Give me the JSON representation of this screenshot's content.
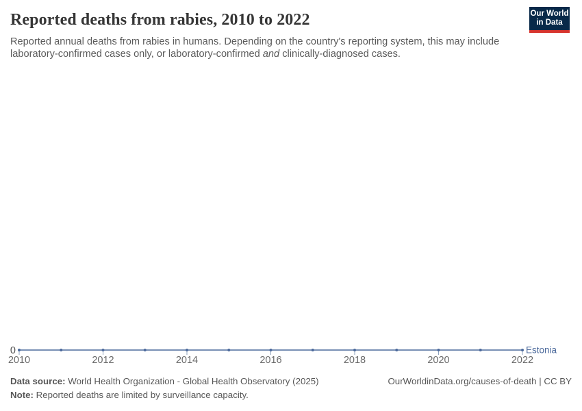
{
  "header": {
    "title": "Reported deaths from rabies, 2010 to 2022",
    "subtitle_part1": "Reported annual deaths from rabies in humans. Depending on the country's reporting system, this may include laboratory-confirmed cases only, or laboratory-confirmed ",
    "subtitle_italic": "and",
    "subtitle_part2": " clinically-diagnosed cases."
  },
  "logo": {
    "line1": "Our World",
    "line2": "in Data",
    "bg_color": "#082949",
    "accent_color": "#d7352e"
  },
  "chart_data": {
    "type": "line",
    "title": "Reported deaths from rabies, 2010 to 2022",
    "x": [
      2010,
      2011,
      2012,
      2013,
      2014,
      2015,
      2016,
      2017,
      2018,
      2019,
      2020,
      2021,
      2022
    ],
    "series": [
      {
        "name": "Estonia",
        "color": "#4C6A9C",
        "values": [
          0,
          0,
          0,
          0,
          0,
          0,
          0,
          0,
          0,
          0,
          0,
          0,
          0
        ]
      }
    ],
    "x_ticks": [
      2010,
      2012,
      2014,
      2016,
      2018,
      2020,
      2022
    ],
    "x_tick_labels": [
      "2010",
      "2012",
      "2014",
      "2016",
      "2018",
      "2020",
      "2022"
    ],
    "y_tick_labels": [
      "0"
    ],
    "xlim": [
      2010,
      2022
    ],
    "ylim": [
      0,
      0
    ],
    "grid": "off",
    "legend_position": "end-of-line-label",
    "colors": {
      "tick_label": "#696969",
      "y_label": "#4f4f4f",
      "axis_tick": "#8fa3bd"
    }
  },
  "footer": {
    "data_source_label": "Data source:",
    "data_source_text": " World Health Organization - Global Health Observatory (2025)",
    "note_label": "Note:",
    "note_text": " Reported deaths are limited by surveillance capacity.",
    "link": "OurWorldinData.org/causes-of-death | CC BY"
  }
}
